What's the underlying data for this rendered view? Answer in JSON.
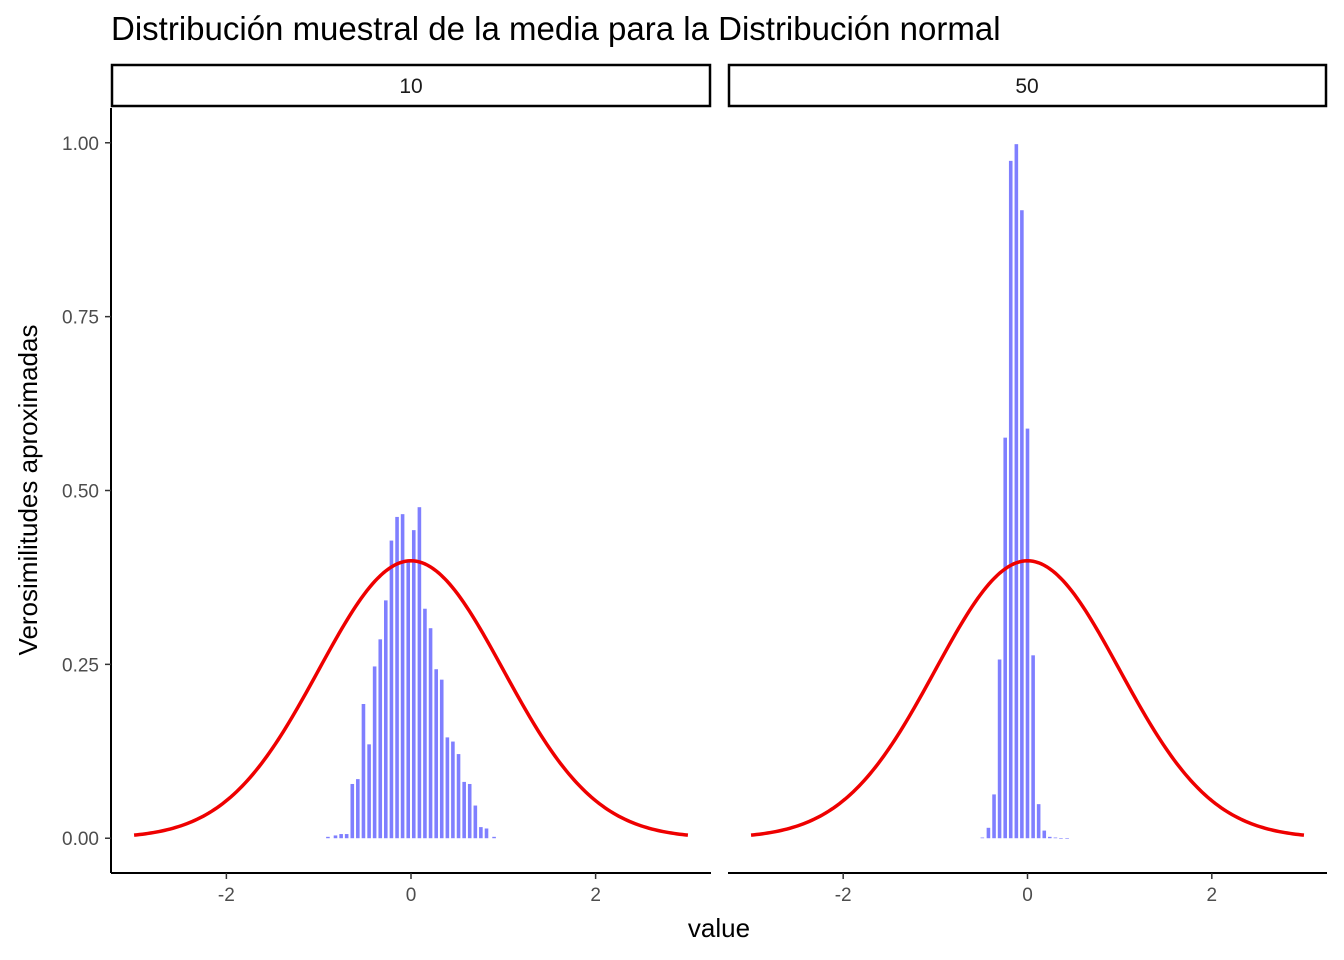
{
  "chart_data": {
    "type": "bar",
    "title": "Distribución muestral de la media para la Distribución normal",
    "xlabel": "value",
    "ylabel": "Verosimilitudes aproximadas",
    "xlim": [
      -3.25,
      3.25
    ],
    "ylim": [
      -0.05,
      1.05
    ],
    "x_ticks": [
      -2,
      0,
      2
    ],
    "y_ticks": [
      0,
      0.25,
      0.5,
      0.75,
      1.0
    ],
    "y_tick_labels": [
      "0.00",
      "0.25",
      "0.50",
      "0.75",
      "1.00"
    ],
    "grid": false,
    "bar_color": "#7f7fff",
    "curve_color": "#ee0000",
    "curve": {
      "name": "dnorm",
      "mean": 0,
      "sd": 1,
      "x_range": [
        -3,
        3
      ]
    },
    "panels": [
      {
        "label": "10",
        "bin_width": 0.0606,
        "bins_x": [
          -0.9,
          -0.818,
          -0.757,
          -0.697,
          -0.636,
          -0.576,
          -0.515,
          -0.454,
          -0.394,
          -0.333,
          -0.273,
          -0.212,
          -0.151,
          -0.091,
          -0.03,
          0.03,
          0.091,
          0.151,
          0.212,
          0.273,
          0.333,
          0.394,
          0.454,
          0.515,
          0.576,
          0.636,
          0.697,
          0.757,
          0.818,
          0.9
        ],
        "values": [
          0.002,
          0.004,
          0.006,
          0.006,
          0.078,
          0.085,
          0.193,
          0.135,
          0.247,
          0.286,
          0.342,
          0.428,
          0.462,
          0.466,
          0.399,
          0.443,
          0.476,
          0.33,
          0.302,
          0.243,
          0.228,
          0.145,
          0.139,
          0.121,
          0.081,
          0.078,
          0.047,
          0.016,
          0.014,
          0.002
        ]
      },
      {
        "label": "50",
        "bin_width": 0.0606,
        "bins_x": [
          -0.49,
          -0.424,
          -0.363,
          -0.303,
          -0.242,
          -0.182,
          -0.121,
          -0.061,
          0.0,
          0.061,
          0.121,
          0.182,
          0.242,
          0.303,
          0.363,
          0.43
        ],
        "values": [
          0.001,
          0.015,
          0.063,
          0.257,
          0.576,
          0.974,
          0.998,
          0.903,
          0.589,
          0.263,
          0.049,
          0.011,
          0.002,
          0.001,
          0.0,
          0.0
        ]
      }
    ]
  }
}
